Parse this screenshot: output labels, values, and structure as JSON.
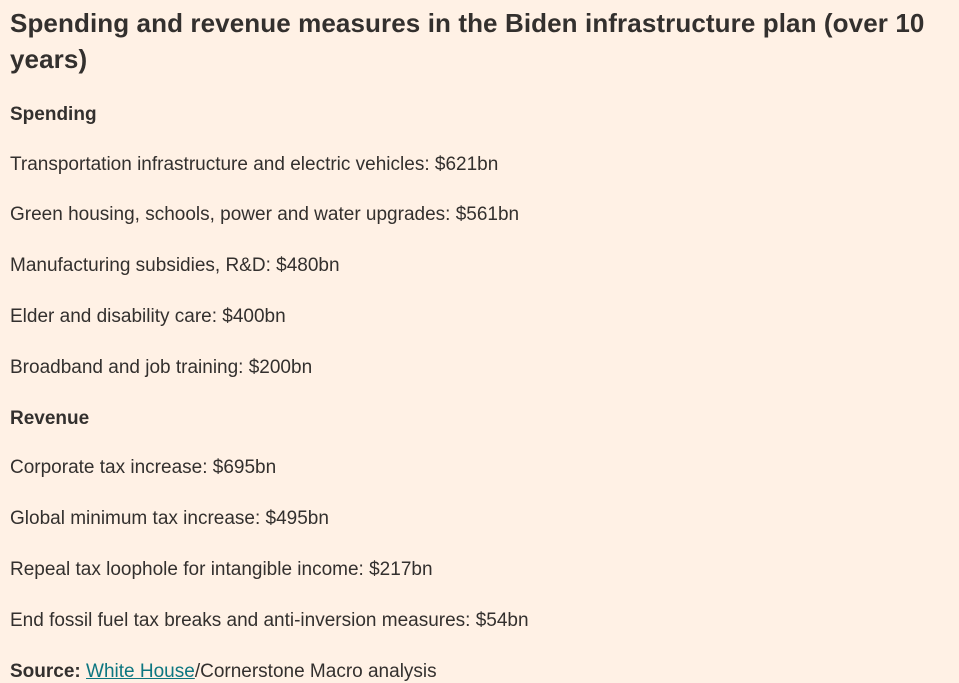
{
  "page": {
    "background_color": "#fff1e5",
    "text_color": "#33302e",
    "link_color": "#0d7680",
    "title": "Spending and revenue measures in the Biden infrastructure plan (over 10 years)"
  },
  "sections": [
    {
      "heading": "Spending",
      "items": [
        "Transportation infrastructure and electric vehicles: $621bn",
        "Green housing, schools, power and water upgrades: $561bn",
        "Manufacturing subsidies, R&D: $480bn",
        "Elder and disability care: $400bn",
        "Broadband and job training: $200bn"
      ]
    },
    {
      "heading": "Revenue",
      "items": [
        "Corporate tax increase: $695bn",
        "Global minimum tax increase: $495bn",
        "Repeal tax loophole for intangible income: $217bn",
        "End fossil fuel tax breaks and anti-inversion measures: $54bn"
      ]
    }
  ],
  "source": {
    "label": "Source:",
    "link_text": "White House",
    "suffix": "/Cornerstone Macro analysis"
  }
}
